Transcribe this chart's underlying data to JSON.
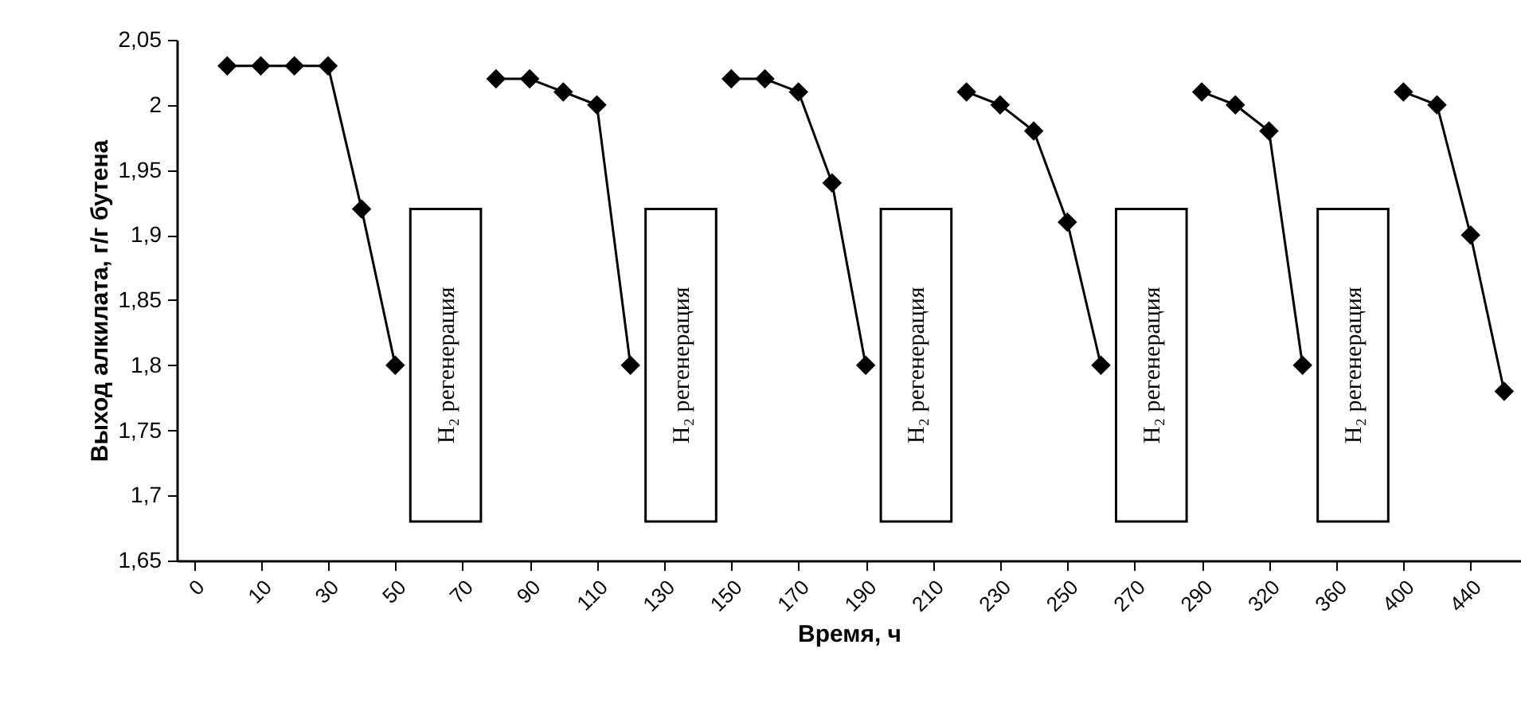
{
  "chart_data": {
    "type": "line",
    "xlabel": "Время, ч",
    "ylabel": "Выход алкилата, г/г бутена",
    "categories": [
      "0",
      null,
      "10",
      null,
      "30",
      null,
      "50",
      null,
      "70",
      null,
      "90",
      null,
      "110",
      null,
      "130",
      null,
      "150",
      null,
      "170",
      null,
      "190",
      null,
      "210",
      null,
      "230",
      null,
      "250",
      null,
      "270",
      null,
      "290",
      null,
      "320",
      null,
      "360",
      null,
      "400",
      null,
      "440",
      null
    ],
    "series": [
      {
        "color": "#000000",
        "values": [
          null,
          2.03,
          2.03,
          2.03,
          2.03,
          1.92,
          1.8,
          null,
          null,
          2.02,
          2.02,
          2.01,
          2.0,
          1.8,
          null,
          null,
          2.02,
          2.02,
          2.01,
          1.94,
          1.8,
          null,
          null,
          2.01,
          2.0,
          1.98,
          1.91,
          1.8,
          null,
          null,
          2.01,
          2.0,
          1.98,
          1.8,
          null,
          null,
          2.01,
          2.0,
          1.9,
          1.78
        ]
      }
    ],
    "ylim": [
      1.65,
      2.05
    ],
    "yticks": [
      {
        "value": 1.65,
        "label": "1,65"
      },
      {
        "value": 1.7,
        "label": "1,7"
      },
      {
        "value": 1.75,
        "label": "1,75"
      },
      {
        "value": 1.8,
        "label": "1,8"
      },
      {
        "value": 1.85,
        "label": "1,85"
      },
      {
        "value": 1.9,
        "label": "1,9"
      },
      {
        "value": 1.95,
        "label": "1,95"
      },
      2,
      {
        "value": 2.05,
        "label": "2,05"
      }
    ],
    "annotations": [
      "H₂ регенерация",
      "H₂ регенерация",
      "H₂ регенерация",
      "H₂ регенерация",
      "H₂ регенерация"
    ],
    "marker": "diamond",
    "line_style": "solid",
    "grid": false
  }
}
